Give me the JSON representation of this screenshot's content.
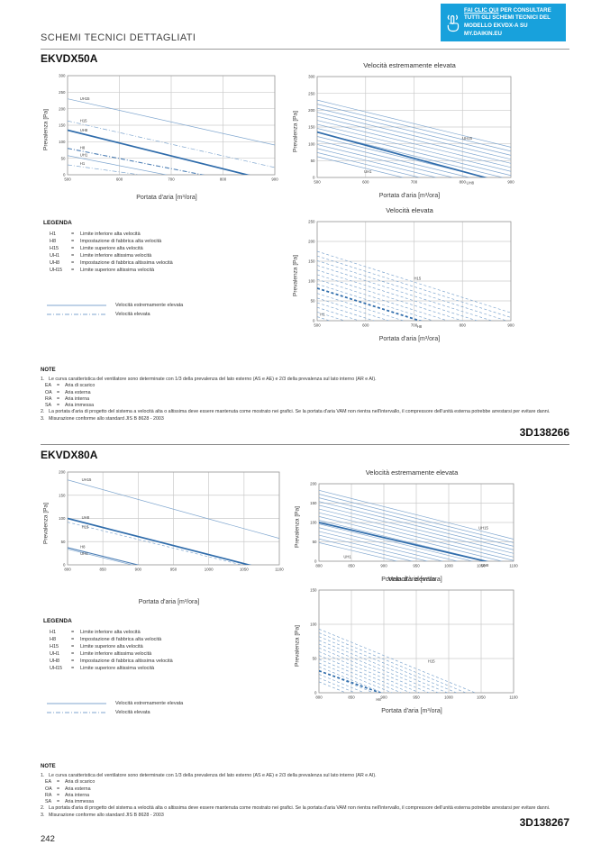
{
  "page": {
    "header_title": "SCHEMI TECNICI DETTAGLIATI",
    "page_number": "242"
  },
  "callout": {
    "bg_color": "#18a1dc",
    "link_text": "FAI CLIC QUI",
    "rest_text": " PER CONSULTARE TUTTI GLI SCHEMI TECNICI DEL MODELLO EKVDX-A SU MY.DAIKIN.EU",
    "icon": "hand-click-icon"
  },
  "sections": [
    {
      "title": "EKVDX50A",
      "code": "3D138266"
    },
    {
      "title": "EKVDX80A",
      "code": "3D138267"
    }
  ],
  "legend": {
    "heading": "LEGENDA",
    "items": [
      {
        "term": "H1",
        "eq": "=",
        "def": "Limite inferiore alta velocità"
      },
      {
        "term": "H8",
        "eq": "=",
        "def": "Impostazione di fabbrica alta velocità"
      },
      {
        "term": "H15",
        "eq": "=",
        "def": "Limite superiore alta velocità"
      },
      {
        "term": "UH1",
        "eq": "=",
        "def": "Limite inferiore altissima velocità"
      },
      {
        "term": "UH8",
        "eq": "=",
        "def": "Impostazione di fabbrica altissima velocità"
      },
      {
        "term": "UH15",
        "eq": "=",
        "def": "Limite superiore altissima velocità"
      }
    ],
    "samples": [
      {
        "style": "solid",
        "label": "Velocità estremamente elevata"
      },
      {
        "style": "dashdot",
        "label": "Velocità elevata"
      }
    ]
  },
  "note": {
    "heading": "NOTE",
    "items": [
      {
        "num": "1.",
        "text": "Le curva caratteristica del ventilatore sono determinate con 1/3 della prevalenza del lato esterno (AS e AE) e 2/3 della prevalenza sul lato interno (AR e AI).",
        "subs": [
          {
            "term": "EA",
            "eq": "=",
            "def": "Aria di scarico"
          },
          {
            "term": "OA",
            "eq": "=",
            "def": "Aria esterna"
          },
          {
            "term": "RA",
            "eq": "=",
            "def": "Aria interna"
          },
          {
            "term": "SA",
            "eq": "=",
            "def": "Aria immessa"
          }
        ]
      },
      {
        "num": "2.",
        "text": "La portata d'aria di progetto del sistema a velocità alta o altissima deve essere mantenuta come mostrato nei grafici. Se la portata d'aria VAM non rientra nell'intervallo, il compressore dell'unità esterna potrebbe arrestarsi per evitare danni.",
        "subs": []
      },
      {
        "num": "3.",
        "text": "Misurazione conforme allo standard JIS B 8628 - 2003",
        "subs": []
      }
    ]
  },
  "colors": {
    "line_thin": "#7fa6cf",
    "line_medium": "#4d7fb5",
    "line_bold": "#2f6cab",
    "grid": "#cbcbcb",
    "axis": "#9b9b9b",
    "chart_text": "#3c3c3c"
  },
  "chart_data": [
    {
      "type": "line",
      "section": "EKVDX50A",
      "title": "",
      "xlabel": "Portata d'aria [m³/ora]",
      "ylabel": "Prevalenza [Pa]",
      "xlim": [
        500,
        900
      ],
      "ylim": [
        0,
        300
      ],
      "xticks": [
        500,
        600,
        700,
        800,
        900
      ],
      "yticks": [
        0,
        50,
        100,
        150,
        200,
        250,
        300
      ],
      "lines": [
        {
          "label": "UH15",
          "style": "solid",
          "weight": "thin",
          "p": [
            [
              500,
              230
            ],
            [
              900,
              90
            ]
          ]
        },
        {
          "label": "H15",
          "style": "dashdot",
          "weight": "thin",
          "p": [
            [
              500,
              163
            ],
            [
              900,
              22
            ]
          ]
        },
        {
          "label": "UH8",
          "style": "solid",
          "weight": "bold",
          "p": [
            [
              500,
              135
            ],
            [
              900,
              -21
            ]
          ]
        },
        {
          "label": "H8",
          "style": "dashdot",
          "weight": "medium",
          "p": [
            [
              500,
              80
            ],
            [
              900,
              -43
            ]
          ]
        },
        {
          "label": "UH1",
          "style": "solid",
          "weight": "thin",
          "p": [
            [
              500,
              58
            ],
            [
              900,
              -64
            ]
          ]
        },
        {
          "label": "H1",
          "style": "dashdot",
          "weight": "thin",
          "p": [
            [
              500,
              30
            ],
            [
              900,
              -56
            ]
          ]
        }
      ],
      "labels": [
        {
          "text": "UH15",
          "at": [
            524,
            227
          ]
        },
        {
          "text": "H15",
          "at": [
            524,
            160
          ]
        },
        {
          "text": "UH8",
          "at": [
            524,
            131
          ]
        },
        {
          "text": "H8",
          "at": [
            524,
            78
          ]
        },
        {
          "text": "UH1",
          "at": [
            524,
            56
          ]
        },
        {
          "text": "H1",
          "at": [
            524,
            30
          ]
        }
      ]
    },
    {
      "type": "line",
      "section": "EKVDX50A",
      "title": "Velocità estremamente elevata",
      "xlabel": "Portata d'aria [m³/ora]",
      "ylabel": "Prevalenza [Pa]",
      "xlim": [
        500,
        900
      ],
      "ylim": [
        0,
        300
      ],
      "xticks": [
        500,
        600,
        700,
        800,
        900
      ],
      "yticks": [
        0,
        50,
        100,
        150,
        200,
        250,
        300
      ],
      "fan": {
        "count": 15,
        "style": "solid",
        "first": [
          [
            500,
            62
          ],
          [
            900,
            -78
          ]
        ],
        "last": [
          [
            500,
            230
          ],
          [
            900,
            90
          ]
        ]
      },
      "lines": [
        {
          "label": "UH8",
          "style": "solid",
          "weight": "bold",
          "p": [
            [
              500,
              135
            ],
            [
              900,
              -21
            ]
          ]
        }
      ],
      "labels": [
        {
          "text": "UH15",
          "at": [
            800,
            112
          ]
        },
        {
          "text": "UH1",
          "at": [
            597,
            14
          ]
        },
        {
          "text": "UH8",
          "at": [
            808,
            -20
          ]
        }
      ]
    },
    {
      "type": "line",
      "section": "EKVDX50A",
      "title": "Velocità elevata",
      "xlabel": "Portata d'aria [m³/ora]",
      "ylabel": "Prevalenza [Pa]",
      "xlim": [
        500,
        900
      ],
      "ylim": [
        0,
        250
      ],
      "xticks": [
        500,
        600,
        700,
        800,
        900
      ],
      "yticks": [
        0,
        50,
        100,
        150,
        200,
        250
      ],
      "fan": {
        "count": 15,
        "style": "dashed",
        "first": [
          [
            500,
            10
          ],
          [
            900,
            -145
          ]
        ],
        "last": [
          [
            500,
            175
          ],
          [
            900,
            20
          ]
        ]
      },
      "lines": [
        {
          "label": "H8",
          "style": "dashed",
          "weight": "bold",
          "p": [
            [
              500,
              82
            ],
            [
              900,
              -73
            ]
          ]
        }
      ],
      "labels": [
        {
          "text": "H15",
          "at": [
            700,
            103
          ]
        },
        {
          "text": "H1",
          "at": [
            506,
            13
          ]
        },
        {
          "text": "H8",
          "at": [
            706,
            -18
          ]
        }
      ]
    },
    {
      "type": "line",
      "section": "EKVDX80A",
      "title": "",
      "xlabel": "Portata d'aria [m³/ora]",
      "ylabel": "Prevalenza [Pa]",
      "xlim": [
        800,
        1100
      ],
      "ylim": [
        0,
        200
      ],
      "xticks": [
        800,
        850,
        900,
        950,
        1000,
        1050,
        1100
      ],
      "yticks": [
        0,
        50,
        100,
        150,
        200
      ],
      "lines": [
        {
          "label": "UH15",
          "style": "solid",
          "weight": "thin",
          "p": [
            [
              800,
              183
            ],
            [
              1100,
              57
            ]
          ]
        },
        {
          "label": "UH8",
          "style": "solid",
          "weight": "bold",
          "p": [
            [
              800,
              100
            ],
            [
              1100,
              -17
            ]
          ]
        },
        {
          "label": "H15",
          "style": "dashed",
          "weight": "thin",
          "p": [
            [
              800,
              92
            ],
            [
              1100,
              -20
            ]
          ]
        },
        {
          "label": "H8",
          "style": "solid",
          "weight": "medium",
          "p": [
            [
              800,
              37
            ],
            [
              1100,
              -75
            ]
          ]
        },
        {
          "label": "UH1",
          "style": "solid",
          "weight": "thin",
          "p": [
            [
              800,
              34
            ],
            [
              1100,
              -78
            ]
          ]
        }
      ],
      "labels": [
        {
          "text": "UH15",
          "at": [
            820,
            181
          ]
        },
        {
          "text": "UH8",
          "at": [
            820,
            99
          ]
        },
        {
          "text": "H15",
          "at": [
            820,
            79
          ]
        },
        {
          "text": "H8",
          "at": [
            818,
            36
          ]
        },
        {
          "text": "UH1",
          "at": [
            818,
            21
          ]
        }
      ]
    },
    {
      "type": "line",
      "section": "EKVDX80A",
      "title": "Velocità estremamente elevata",
      "xlabel": "Portata d'aria [m³/ora]",
      "ylabel": "Prevalenza [Pa]",
      "xlim": [
        800,
        1100
      ],
      "ylim": [
        0,
        200
      ],
      "xticks": [
        800,
        850,
        900,
        950,
        1000,
        1050,
        1100
      ],
      "yticks": [
        0,
        50,
        100,
        150,
        200
      ],
      "fan": {
        "count": 15,
        "style": "solid",
        "first": [
          [
            800,
            48
          ],
          [
            1100,
            -72
          ]
        ],
        "last": [
          [
            800,
            183
          ],
          [
            1100,
            57
          ]
        ]
      },
      "lines": [
        {
          "label": "UH8",
          "style": "solid",
          "weight": "bold",
          "p": [
            [
              800,
              100
            ],
            [
              1100,
              -17
            ]
          ]
        }
      ],
      "labels": [
        {
          "text": "UH15",
          "at": [
            1046,
            82
          ]
        },
        {
          "text": "UH1",
          "at": [
            838,
            8
          ]
        },
        {
          "text": "UH8",
          "at": [
            1050,
            -14
          ]
        }
      ]
    },
    {
      "type": "line",
      "section": "EKVDX80A",
      "title": "Velocità elevata",
      "xlabel": "Portata d'aria [m³/ora]",
      "ylabel": "Prevalenza [Pa]",
      "xlim": [
        800,
        1100
      ],
      "ylim": [
        0,
        150
      ],
      "xticks": [
        800,
        850,
        900,
        950,
        1000,
        1050,
        1100
      ],
      "yticks": [
        0,
        50,
        100,
        150
      ],
      "fan": {
        "count": 15,
        "style": "dashed",
        "first": [
          [
            800,
            16
          ],
          [
            1100,
            -100
          ]
        ],
        "last": [
          [
            800,
            93
          ],
          [
            1100,
            -23
          ]
        ]
      },
      "lines": [
        {
          "label": "H8",
          "style": "dashed",
          "weight": "bold",
          "p": [
            [
              800,
              32
            ],
            [
              1100,
              -70
            ]
          ]
        }
      ],
      "labels": [
        {
          "text": "H15",
          "at": [
            968,
            44
          ]
        },
        {
          "text": "H8",
          "at": [
            888,
            -12
          ]
        }
      ]
    }
  ]
}
